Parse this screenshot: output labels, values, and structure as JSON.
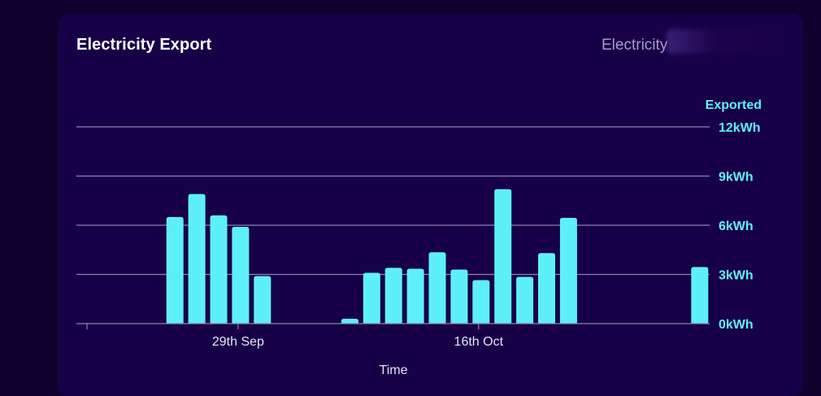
{
  "card": {
    "title": "Electricity Export",
    "subtitle": "Electricity"
  },
  "colors": {
    "page_background": "#100030",
    "card_background": "#180048",
    "bar": "#5ef0f8",
    "gridline": "#8a84b0",
    "axis_text": "#5ef0f8",
    "x_text": "#e6e2f2"
  },
  "chart_data": {
    "type": "bar",
    "title": "Electricity Export",
    "xlabel": "Time",
    "ylabel": "Exported",
    "y_unit": "kWh",
    "ylim": [
      0,
      12
    ],
    "yticks": [
      0,
      3,
      6,
      9,
      12
    ],
    "ytick_labels": [
      "0kWh",
      "3kWh",
      "6kWh",
      "9kWh",
      "12kWh"
    ],
    "grid": true,
    "y_axis_position": "right",
    "xtick_labels": [
      {
        "label": "29th Sep",
        "index": 6
      },
      {
        "label": "16th Oct",
        "index": 17
      }
    ],
    "values": [
      0,
      0,
      0,
      6.5,
      7.9,
      6.6,
      5.9,
      2.9,
      0,
      0,
      0,
      0.3,
      3.1,
      3.4,
      3.35,
      4.35,
      3.3,
      2.65,
      8.2,
      2.85,
      4.3,
      6.45,
      0,
      0,
      0,
      0,
      0,
      3.45
    ]
  }
}
